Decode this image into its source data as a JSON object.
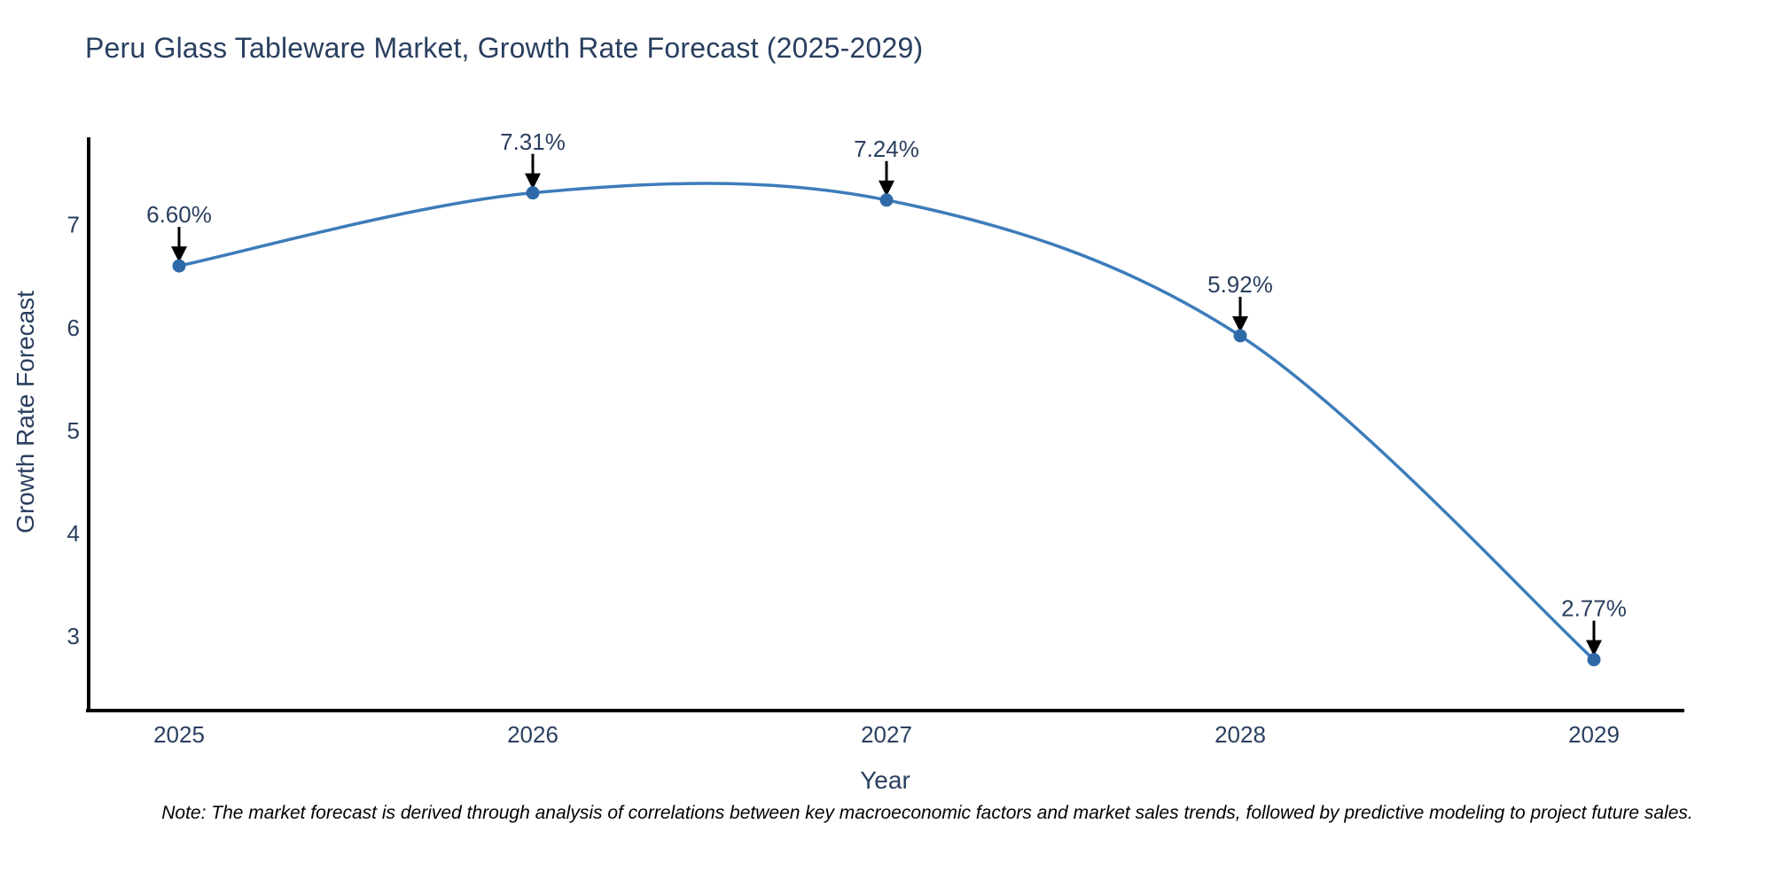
{
  "chart_data": {
    "type": "line",
    "title": "Peru Glass Tableware Market, Growth Rate Forecast (2025-2029)",
    "xlabel": "Year",
    "ylabel": "Growth Rate Forecast",
    "categories": [
      "2025",
      "2026",
      "2027",
      "2028",
      "2029"
    ],
    "values": [
      6.6,
      7.31,
      7.24,
      5.92,
      2.77
    ],
    "point_labels": [
      "6.60%",
      "7.31%",
      "7.24%",
      "5.92%",
      "2.77%"
    ],
    "yticks": [
      3,
      4,
      5,
      6,
      7
    ],
    "ylim": [
      2.275,
      7.85
    ],
    "line_shape": "spline",
    "grid": false,
    "legend_position": "none",
    "colors": {
      "line": "#3d7cba",
      "marker": "#2f6aa8",
      "axis": "#000000",
      "text": "#2a3f5f",
      "arrow": "#000000"
    }
  },
  "note": "Note: The market forecast is derived through analysis of correlations between key macroeconomic factors and market sales trends, followed by predictive modeling to project future sales."
}
